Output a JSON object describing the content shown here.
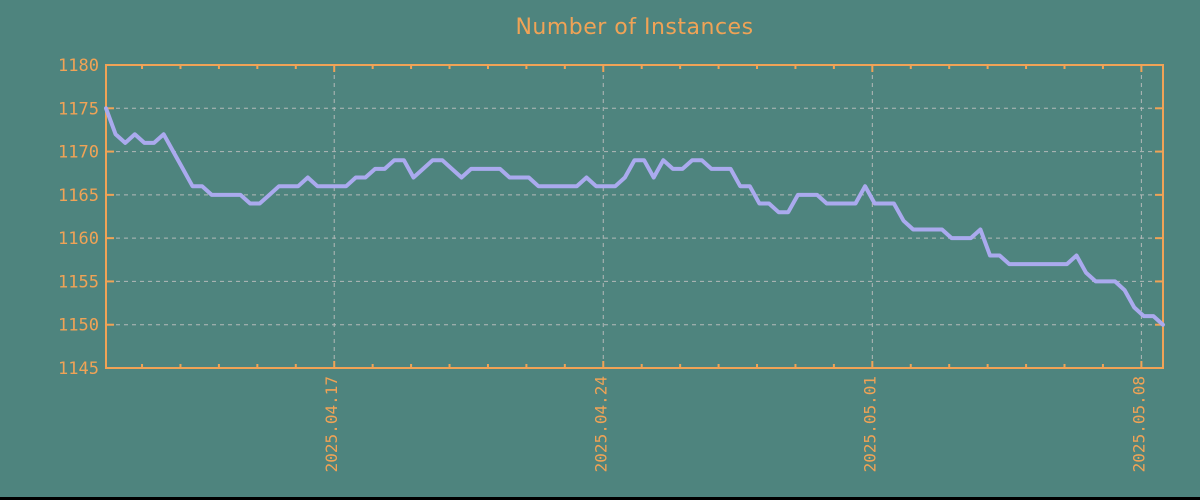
{
  "page": {
    "title": "Number of Instances"
  },
  "colors": {
    "background": "#4e847e",
    "axis_orange": "#f0a356",
    "line_purple": "#aaaaee",
    "grid_gray": "#bfbfbf",
    "bottom_edge": "#000000"
  },
  "chart_data": {
    "type": "line",
    "title": "Number of Instances",
    "xlabel": "",
    "ylabel": "",
    "legend": "none",
    "grid": "dashed gray, horizontal at every 5 units, vertical at weekly date ticks",
    "ylim": [
      1145,
      1180
    ],
    "y_ticks": [
      1145,
      1150,
      1155,
      1160,
      1165,
      1170,
      1175,
      1180
    ],
    "x_range_estimated": [
      "2025-04-11",
      "2025-05-08"
    ],
    "x_major_ticks": [
      {
        "label": "2025.04.17",
        "day_index": 6
      },
      {
        "label": "2025.04.24",
        "day_index": 13
      },
      {
        "label": "2025.05.01",
        "day_index": 20
      },
      {
        "label": "2025.05.08",
        "day_index": 27
      }
    ],
    "x_minor_tick_interval": "1 day",
    "sample_interval_hours": 6,
    "values": [
      1175,
      1172,
      1171,
      1172,
      1171,
      1171,
      1172,
      1170,
      1168,
      1166,
      1166,
      1165,
      1165,
      1165,
      1165,
      1164,
      1164,
      1165,
      1166,
      1166,
      1166,
      1167,
      1166,
      1166,
      1166,
      1166,
      1167,
      1167,
      1168,
      1168,
      1169,
      1169,
      1167,
      1168,
      1169,
      1169,
      1168,
      1167,
      1168,
      1168,
      1168,
      1168,
      1167,
      1167,
      1167,
      1166,
      1166,
      1166,
      1166,
      1166,
      1167,
      1166,
      1166,
      1166,
      1167,
      1169,
      1169,
      1167,
      1169,
      1168,
      1168,
      1169,
      1169,
      1168,
      1168,
      1168,
      1166,
      1166,
      1164,
      1164,
      1163,
      1163,
      1165,
      1165,
      1165,
      1164,
      1164,
      1164,
      1164,
      1166,
      1164,
      1164,
      1164,
      1162,
      1161,
      1161,
      1161,
      1161,
      1160,
      1160,
      1160,
      1161,
      1158,
      1158,
      1157,
      1157,
      1157,
      1157,
      1157,
      1157,
      1157,
      1158,
      1156,
      1155,
      1155,
      1155,
      1154,
      1152,
      1151,
      1151,
      1150
    ]
  }
}
